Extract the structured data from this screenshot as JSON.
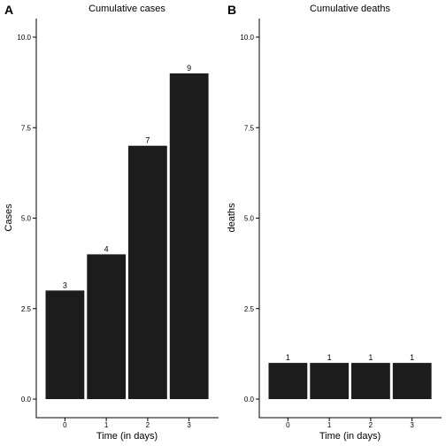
{
  "bar_color": "#1c1c1c",
  "chart_data": [
    {
      "type": "bar",
      "panel": "A",
      "title": "Cumulative  cases",
      "xlabel": "Time (in days)",
      "ylabel": "Cases",
      "categories": [
        "0",
        "1",
        "2",
        "3"
      ],
      "values": [
        3,
        4,
        7,
        9
      ],
      "ylim": [
        0,
        10
      ],
      "yticks": [
        0,
        2.5,
        5,
        7.5,
        10
      ],
      "ytick_labels": [
        "0.0",
        "2.5",
        "5.0",
        "7.5",
        "10.0"
      ],
      "grid": false
    },
    {
      "type": "bar",
      "panel": "B",
      "title": "Cumulative  deaths",
      "xlabel": "Time (in days)",
      "ylabel": "deaths",
      "categories": [
        "0",
        "1",
        "2",
        "3"
      ],
      "values": [
        1,
        1,
        1,
        1
      ],
      "ylim": [
        0,
        10
      ],
      "yticks": [
        0,
        2.5,
        5,
        7.5,
        10
      ],
      "ytick_labels": [
        "0.0",
        "2.5",
        "5.0",
        "7.5",
        "10.0"
      ],
      "grid": false
    }
  ]
}
